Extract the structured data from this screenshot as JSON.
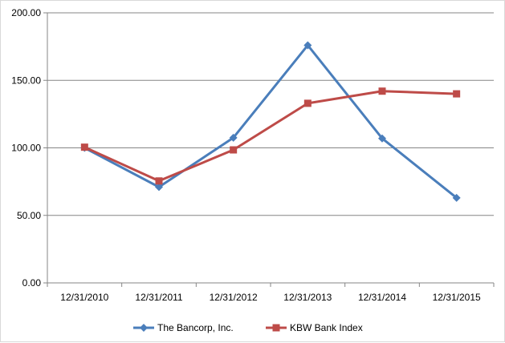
{
  "chart_data": {
    "type": "line",
    "title": "",
    "xlabel": "",
    "ylabel": "",
    "categories": [
      "12/31/2010",
      "12/31/2011",
      "12/31/2012",
      "12/31/2013",
      "12/31/2014",
      "12/31/2015"
    ],
    "ylim": [
      0,
      200
    ],
    "yticks": [
      "0.00",
      "50.00",
      "100.00",
      "150.00",
      "200.00"
    ],
    "grid": true,
    "legend_position": "bottom",
    "series": [
      {
        "name": "The Bancorp, Inc.",
        "values": [
          100.0,
          71.0,
          107.5,
          176.0,
          107.0,
          63.0
        ],
        "color": "#4a7ebb",
        "marker": "diamond"
      },
      {
        "name": "KBW Bank Index",
        "values": [
          100.5,
          75.5,
          98.5,
          133.0,
          142.0,
          140.0
        ],
        "color": "#be4b48",
        "marker": "square"
      }
    ]
  }
}
